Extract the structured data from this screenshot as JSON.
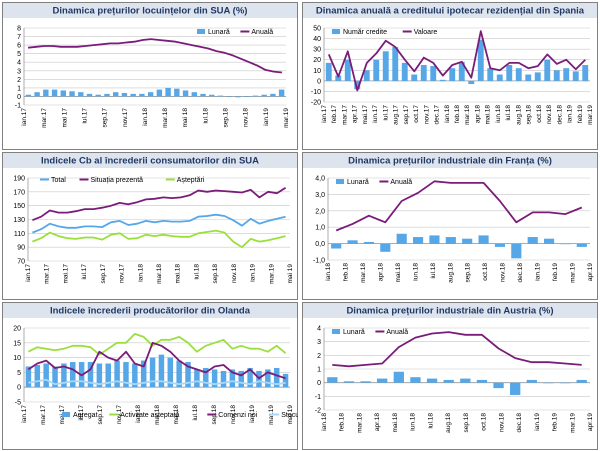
{
  "colors": {
    "bar": "#56a7e8",
    "line": "#7a1c7a",
    "green": "#99e03c",
    "grid": "#c8c8c8",
    "frame": "#808080",
    "title_bg": "#dde4ee",
    "title_text": "#1f3864"
  },
  "chart_data": [
    {
      "type": "bar+line",
      "title": "Dinamica prețurilor locuințelor din SUA (%)",
      "legend": [
        "Lunară",
        "Anuală"
      ],
      "legend_position": "top-right",
      "ylim": [
        -1,
        8
      ],
      "yticks": [
        -1,
        0,
        1,
        2,
        3,
        4,
        5,
        6,
        7,
        8
      ],
      "x_labels": [
        "ian.17",
        "mar.17",
        "mai 17",
        "iul.17",
        "sep.17",
        "nov.17",
        "ian.18",
        "mar.18",
        "mai 18",
        "iul.18",
        "sep.18",
        "nov.18",
        "ian.19",
        "mar.19"
      ],
      "bars": [
        0.2,
        0.5,
        0.8,
        0.8,
        0.7,
        0.6,
        0.5,
        0.3,
        0.2,
        0.3,
        0.5,
        0.4,
        0.3,
        0.3,
        0.5,
        0.8,
        1.0,
        0.9,
        0.7,
        0.5,
        0.3,
        0.2,
        0.1,
        0.0,
        -0.1,
        0.0,
        0.1,
        0.2,
        0.3,
        0.8
      ],
      "line": [
        5.7,
        5.8,
        5.9,
        5.9,
        5.8,
        5.8,
        5.8,
        5.9,
        6.0,
        6.1,
        6.2,
        6.2,
        6.3,
        6.4,
        6.6,
        6.7,
        6.6,
        6.5,
        6.4,
        6.2,
        6.0,
        5.8,
        5.6,
        5.3,
        5.1,
        4.8,
        4.4,
        4.0,
        3.6,
        3.1,
        2.9,
        2.8
      ]
    },
    {
      "type": "bar+line",
      "title": "Dinamica anuală a creditului ipotecar rezidențial din Spania",
      "legend": [
        "Număr credite",
        "Valoare"
      ],
      "legend_position": "top-left",
      "ylim": [
        -20,
        50
      ],
      "yticks": [
        -20,
        -10,
        0,
        10,
        20,
        30,
        40,
        50
      ],
      "x_labels": [
        "ian.17",
        "mar.17",
        "mai.17",
        "iul.17",
        "sep.17",
        "nov.17",
        "ian.18",
        "mar.18",
        "mai.18",
        "iul.18",
        "sep.18",
        "nov.18",
        "ian.19",
        "mar.19"
      ],
      "x_labels_fine": [
        "feb.17",
        "apr.17",
        "iun.17",
        "aug.17",
        "oct.17",
        "dec.17",
        "feb.18",
        "apr.18",
        "iun.18",
        "aug.18",
        "oct.18",
        "dec.18",
        "feb.19"
      ],
      "bars": [
        17,
        5,
        20,
        -8,
        10,
        20,
        28,
        32,
        17,
        6,
        15,
        14,
        1,
        12,
        18,
        -3,
        39,
        12,
        6,
        15,
        12,
        6,
        8,
        20,
        10,
        12,
        9,
        15
      ],
      "line": [
        25,
        4,
        28,
        -9,
        17,
        26,
        38,
        32,
        20,
        9,
        22,
        17,
        5,
        15,
        18,
        3,
        47,
        12,
        10,
        17,
        17,
        12,
        14,
        25,
        16,
        20,
        11,
        20
      ]
    },
    {
      "type": "line",
      "title": "Indicele Cb al încrederii consumatorilor din SUA",
      "legend": [
        "Total",
        "Situația prezentă",
        "Așteptări"
      ],
      "legend_position": "top",
      "ylim": [
        70,
        190
      ],
      "yticks": [
        70,
        90,
        110,
        130,
        150,
        170,
        190
      ],
      "x_labels": [
        "ian.17",
        "mar.17",
        "mai.17",
        "iul.17",
        "sep.17",
        "nov.17",
        "ian.18",
        "mar.18",
        "mai.18",
        "iul.18",
        "sep.18",
        "nov.18",
        "ian.19",
        "mar.19",
        "mai 19"
      ],
      "series": [
        {
          "name": "Total",
          "values": [
            111,
            116,
            124,
            120,
            118,
            118,
            120,
            120,
            119,
            126,
            128,
            122,
            124,
            128,
            126,
            128,
            127,
            127,
            128,
            134,
            135,
            137,
            135,
            129,
            121,
            131,
            124,
            128,
            131,
            134
          ]
        },
        {
          "name": "Situația prezentă",
          "values": [
            129,
            134,
            143,
            140,
            140,
            142,
            145,
            145,
            147,
            150,
            154,
            152,
            155,
            159,
            160,
            162,
            161,
            162,
            165,
            172,
            170,
            172,
            171,
            170,
            169,
            173,
            162,
            170,
            168,
            176
          ]
        },
        {
          "name": "Așteptări",
          "values": [
            98,
            103,
            111,
            106,
            103,
            102,
            104,
            104,
            101,
            108,
            110,
            102,
            103,
            108,
            106,
            108,
            106,
            105,
            105,
            110,
            112,
            114,
            111,
            98,
            90,
            102,
            98,
            100,
            103,
            106
          ]
        }
      ]
    },
    {
      "type": "bar+line",
      "title": "Dinamica prețurilor industriale din Franța (%)",
      "legend": [
        "Lunară",
        "Anuală"
      ],
      "legend_position": "top-left",
      "ylim": [
        -1.0,
        4.0
      ],
      "yticks": [
        "-1,0",
        "0,0",
        "1,0",
        "2,0",
        "3,0",
        "4,0"
      ],
      "x_labels": [
        "ian.18",
        "feb.18",
        "mar.18",
        "apr.18",
        "mai.18",
        "iun.18",
        "iul.18",
        "aug.18",
        "sep.18",
        "oct.18",
        "nov.18",
        "dec.18",
        "ian.19",
        "feb.19",
        "mar.19",
        "apr.19"
      ],
      "bars": [
        -0.3,
        0.2,
        0.1,
        -0.5,
        0.6,
        0.4,
        0.5,
        0.4,
        0.3,
        0.5,
        -0.2,
        -0.9,
        0.4,
        0.3,
        0.0,
        -0.2
      ],
      "line": [
        0.8,
        1.2,
        1.7,
        1.3,
        2.6,
        3.1,
        3.8,
        3.7,
        3.7,
        3.7,
        2.6,
        1.3,
        1.9,
        1.9,
        1.8,
        2.2
      ]
    },
    {
      "type": "bar+line",
      "title": "Indicele încrederii producătorilor din Olanda",
      "legend": [
        "Agregat",
        "Activitate așteptată",
        "Comenzi noi",
        "Stocuri"
      ],
      "legend_position": "bottom",
      "ylim": [
        -5,
        20
      ],
      "yticks": [
        -5,
        0,
        5,
        10,
        15,
        20
      ],
      "x_labels": [
        "ian.17",
        "mar.17",
        "mai.17",
        "iul.17",
        "sep.17",
        "nov.17",
        "ian.18",
        "mar.18",
        "mai.18",
        "iul.18",
        "sep.18",
        "nov.18",
        "ian.19",
        "mar.19",
        "mai 19"
      ],
      "bars": [
        7,
        7.5,
        8,
        7,
        8,
        8.5,
        8.5,
        8.5,
        8,
        8,
        9,
        8.5,
        8,
        9,
        10,
        11,
        10,
        9,
        8.5,
        6,
        6.5,
        6,
        5.5,
        6,
        5.5,
        6.5,
        5.5,
        6,
        6.5,
        4.5
      ],
      "series": [
        {
          "name": "Activitate așteptată",
          "values": [
            12,
            13.5,
            13,
            12.5,
            13,
            14,
            14,
            13.5,
            11,
            13,
            15,
            15,
            18,
            17,
            14,
            16,
            16,
            17,
            15,
            12,
            14,
            15,
            16,
            13,
            14,
            13,
            13,
            12,
            14,
            11.5
          ]
        },
        {
          "name": "Comenzi noi",
          "values": [
            6,
            8,
            9,
            6.5,
            7,
            6,
            4,
            6,
            12,
            10,
            9,
            12,
            8,
            7,
            15,
            14,
            12,
            9,
            7,
            6,
            5,
            7,
            7.5,
            5,
            4,
            6,
            3,
            5,
            4,
            3
          ]
        },
        {
          "name": "Stocuri",
          "values": [
            1.5,
            2,
            2.5,
            1,
            1.5,
            2,
            2,
            1.5,
            1,
            1.5,
            2,
            1.5,
            1,
            1.5,
            2,
            2,
            1.5,
            1,
            1.5,
            2,
            1.5,
            1,
            1.5,
            2,
            1.5,
            1,
            2,
            1.5,
            1,
            1.5
          ]
        }
      ]
    },
    {
      "type": "bar+line",
      "title": "Dinamica prețurilor industriale din Austria (%)",
      "legend": [
        "Lunară",
        "Anuală"
      ],
      "legend_position": "top-left",
      "ylim": [
        -2,
        4
      ],
      "yticks": [
        -2,
        -1,
        0,
        1,
        2,
        3,
        4
      ],
      "x_labels": [
        "ian.18",
        "feb.18",
        "mar.18",
        "apr.18",
        "mai.18",
        "iun.18",
        "iul.18",
        "aug.18",
        "sep.18",
        "oct.18",
        "nov.18",
        "dec.18",
        "ian.19",
        "feb.19",
        "mar.19",
        "apr.19"
      ],
      "bars": [
        0.4,
        0.1,
        0.1,
        0.3,
        0.8,
        0.4,
        0.3,
        0.2,
        0.3,
        0.2,
        -0.4,
        -0.9,
        0.2,
        0.0,
        0.0,
        0.2
      ],
      "line": [
        1.3,
        1.2,
        1.3,
        1.4,
        2.6,
        3.3,
        3.6,
        3.7,
        3.5,
        3.5,
        2.5,
        1.8,
        1.5,
        1.5,
        1.4,
        1.3
      ]
    }
  ]
}
